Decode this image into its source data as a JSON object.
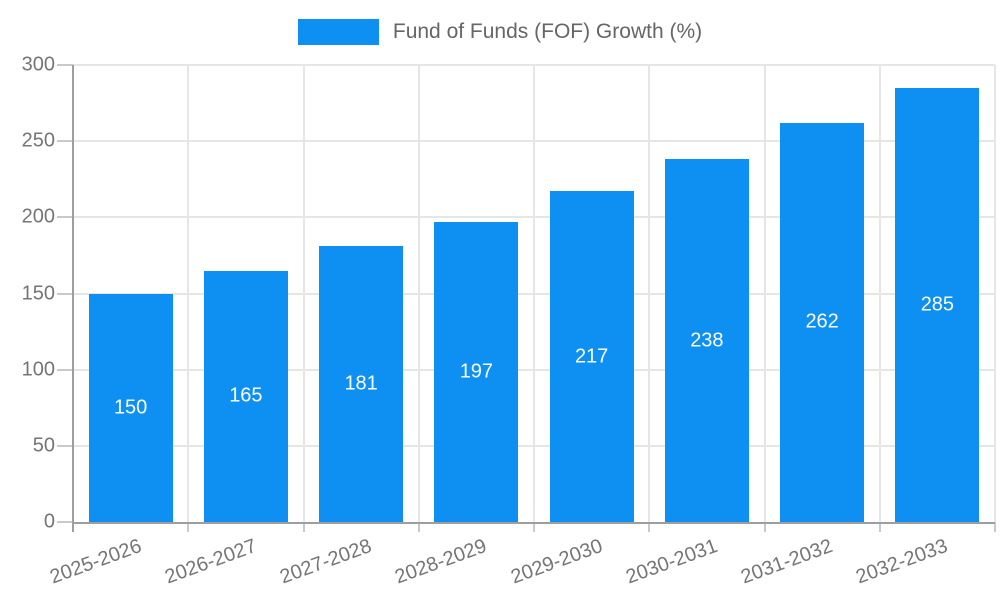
{
  "chart_data": {
    "type": "bar",
    "title": "Fund of Funds (FOF) Growth (%)",
    "categories": [
      "2025-2026",
      "2026-2027",
      "2027-2028",
      "2028-2029",
      "2029-2030",
      "2030-2031",
      "2031-2032",
      "2032-2033"
    ],
    "values": [
      150,
      165,
      181,
      197,
      217,
      238,
      262,
      285
    ],
    "value_labels": [
      "150",
      "165",
      "181",
      "197",
      "217",
      "238",
      "262",
      "285"
    ],
    "xlabel": "",
    "ylabel": "",
    "ylim": [
      0,
      300
    ],
    "ytick_step": 50,
    "ytick_labels": [
      "0",
      "50",
      "100",
      "150",
      "200",
      "250",
      "300"
    ],
    "grid": true,
    "legend_position": "top",
    "x_label_rotation_deg": -20
  },
  "colors": {
    "bar": "#0D90F2",
    "grid": "#E6E6E6",
    "axis": "#9E9E9E",
    "tick": "#C9C9C9",
    "tick_text": "#757575",
    "legend_text": "#666666",
    "value_text": "#FFFFFF",
    "background": "#FFFFFF"
  }
}
